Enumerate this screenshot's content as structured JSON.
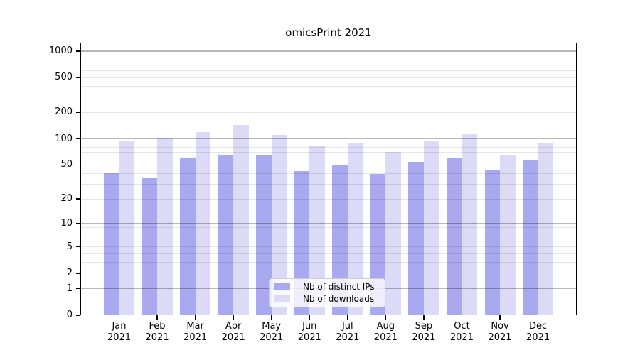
{
  "title": "omicsPrint 2021",
  "legend": {
    "items": [
      {
        "label": "Nb of distinct IPs",
        "swatch": "distinct_ips"
      },
      {
        "label": "Nb of downloads",
        "swatch": "downloads"
      }
    ]
  },
  "colors": {
    "distinct_ips": "#a9a9f0",
    "downloads": "#dbdbf7",
    "grid_major": "rgba(0,0,0,0.28)",
    "grid_minor": "rgba(0,0,0,0.10)",
    "axis": "#000000",
    "legend_border": "#cccccc",
    "background": "#ffffff"
  },
  "chart_data": {
    "type": "bar",
    "categories": [
      "Jan 2021",
      "Feb 2021",
      "Mar 2021",
      "Apr 2021",
      "May 2021",
      "Jun 2021",
      "Jul 2021",
      "Aug 2021",
      "Sep 2021",
      "Oct 2021",
      "Nov 2021",
      "Dec 2021"
    ],
    "series": [
      {
        "name": "Nb of distinct IPs",
        "values": [
          40,
          36,
          61,
          66,
          65,
          42,
          49,
          39,
          54,
          60,
          44,
          56
        ]
      },
      {
        "name": "Nb of downloads",
        "values": [
          93,
          102,
          120,
          143,
          110,
          84,
          89,
          70,
          95,
          113,
          66,
          89
        ]
      }
    ],
    "title": "omicsPrint 2021",
    "xlabel": "",
    "ylabel": "",
    "yscale": "log1p",
    "yticks": [
      0,
      1,
      2,
      5,
      10,
      20,
      50,
      100,
      200,
      500,
      1000
    ],
    "ylim": [
      0,
      1250
    ],
    "grid": true,
    "legend_position": "lower center"
  }
}
